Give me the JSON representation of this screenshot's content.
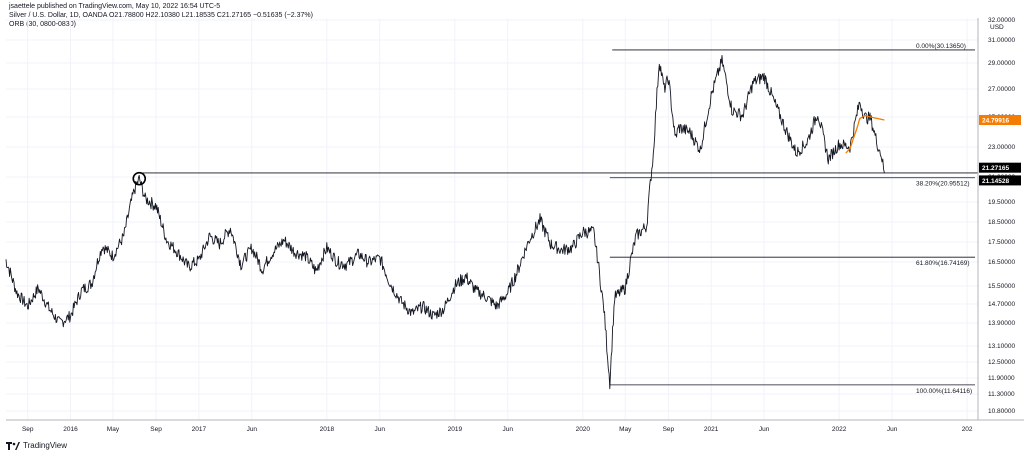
{
  "header": {
    "published": "jsaettele published on TradingView.com, May 10, 2022 16:54 UTC-5",
    "symbol_line": "Silver / U.S. Dollar, 1D, OANDA  O21.78800  H22.10380  L21.18535  C21.27165  −0.51635 (−2.37%)",
    "indicator_line": "ORB (30, 0800-0830)"
  },
  "footer": {
    "brand": "TradingView"
  },
  "colors": {
    "price_line": "#131722",
    "orb_line": "#f57c00",
    "price_tag_bg": "#000000",
    "orb_tag_bg": "#f57c00",
    "grid": "#f0f3fa",
    "fib_line": "#131722"
  },
  "chart_data": {
    "type": "line",
    "title": "Silver / U.S. Dollar, 1D, OANDA",
    "ylabel": "USD",
    "ylim": [
      10.25,
      32.0
    ],
    "y_ticks": [
      "32.00000",
      "31.00000",
      "29.00000",
      "27.00000",
      "25.00000",
      "23.00000",
      "21.00000",
      "19.50000",
      "18.50000",
      "17.50000",
      "16.50000",
      "15.50000",
      "14.70000",
      "13.90000",
      "13.10000",
      "12.50000",
      "11.90000",
      "11.30000",
      "10.80000"
    ],
    "x_ticks": [
      "Sep",
      "2016",
      "May",
      "Sep",
      "2017",
      "Jun",
      "2018",
      "Jun",
      "2019",
      "Jun",
      "2020",
      "May",
      "Sep",
      "2021",
      "Jun",
      "2022",
      "Jun",
      "202"
    ],
    "current_price": {
      "label": "21.27165",
      "value": 21.27165
    },
    "level_tag": {
      "label": "21.14528",
      "value": 21.14528
    },
    "orb_tag": {
      "label": "24.79916",
      "value": 24.79916
    },
    "horizontal_level": 21.27165,
    "fibonacci": [
      {
        "label": "0.00%(30.13650)",
        "value": 30.1365
      },
      {
        "label": "38.20%(20.95512)",
        "value": 20.95512
      },
      {
        "label": "61.80%(16.74169)",
        "value": 16.74169
      },
      {
        "label": "100.00%(11.64116)",
        "value": 11.64116
      }
    ],
    "series": [
      {
        "values": [
          [
            "2015-07-01",
            16.6
          ],
          [
            "2015-08-01",
            15.2
          ],
          [
            "2015-09-01",
            14.6
          ],
          [
            "2015-10-01",
            15.4
          ],
          [
            "2015-11-01",
            14.5
          ],
          [
            "2015-12-01",
            13.9
          ],
          [
            "2016-01-01",
            14.2
          ],
          [
            "2016-02-01",
            15.3
          ],
          [
            "2016-03-01",
            15.6
          ],
          [
            "2016-04-01",
            17.3
          ],
          [
            "2016-05-01",
            16.8
          ],
          [
            "2016-06-01",
            17.8
          ],
          [
            "2016-07-01",
            20.2
          ],
          [
            "2016-07-15",
            20.9
          ],
          [
            "2016-08-01",
            19.7
          ],
          [
            "2016-09-01",
            19.3
          ],
          [
            "2016-10-01",
            17.6
          ],
          [
            "2016-11-01",
            17.0
          ],
          [
            "2016-12-01",
            16.3
          ],
          [
            "2017-01-01",
            16.6
          ],
          [
            "2017-02-01",
            17.8
          ],
          [
            "2017-03-01",
            17.4
          ],
          [
            "2017-04-01",
            18.2
          ],
          [
            "2017-05-01",
            16.4
          ],
          [
            "2017-06-01",
            17.2
          ],
          [
            "2017-07-01",
            16.2
          ],
          [
            "2017-08-01",
            17.0
          ],
          [
            "2017-09-01",
            17.6
          ],
          [
            "2017-10-01",
            17.0
          ],
          [
            "2017-11-01",
            16.8
          ],
          [
            "2017-12-01",
            16.1
          ],
          [
            "2018-01-01",
            17.2
          ],
          [
            "2018-02-01",
            16.5
          ],
          [
            "2018-03-01",
            16.4
          ],
          [
            "2018-04-01",
            16.9
          ],
          [
            "2018-05-01",
            16.5
          ],
          [
            "2018-06-01",
            16.7
          ],
          [
            "2018-07-01",
            15.6
          ],
          [
            "2018-08-01",
            14.8
          ],
          [
            "2018-09-01",
            14.3
          ],
          [
            "2018-10-01",
            14.6
          ],
          [
            "2018-11-01",
            14.2
          ],
          [
            "2018-12-01",
            14.5
          ],
          [
            "2019-01-01",
            15.5
          ],
          [
            "2019-02-01",
            15.9
          ],
          [
            "2019-03-01",
            15.3
          ],
          [
            "2019-04-01",
            15.0
          ],
          [
            "2019-05-01",
            14.6
          ],
          [
            "2019-06-01",
            15.2
          ],
          [
            "2019-07-01",
            16.2
          ],
          [
            "2019-08-01",
            17.6
          ],
          [
            "2019-09-01",
            18.6
          ],
          [
            "2019-10-01",
            17.4
          ],
          [
            "2019-11-01",
            17.1
          ],
          [
            "2019-12-01",
            17.2
          ],
          [
            "2020-01-01",
            18.0
          ],
          [
            "2020-02-01",
            18.0
          ],
          [
            "2020-03-01",
            14.5
          ],
          [
            "2020-03-18",
            11.7
          ],
          [
            "2020-04-01",
            15.0
          ],
          [
            "2020-05-01",
            15.4
          ],
          [
            "2020-06-01",
            17.8
          ],
          [
            "2020-07-01",
            18.3
          ],
          [
            "2020-07-20",
            22.5
          ],
          [
            "2020-08-06",
            29.2
          ],
          [
            "2020-08-20",
            27.0
          ],
          [
            "2020-09-01",
            27.8
          ],
          [
            "2020-09-20",
            23.6
          ],
          [
            "2020-10-01",
            24.3
          ],
          [
            "2020-11-01",
            24.0
          ],
          [
            "2020-12-01",
            22.8
          ],
          [
            "2021-01-01",
            26.5
          ],
          [
            "2021-02-01",
            29.2
          ],
          [
            "2021-02-20",
            26.7
          ],
          [
            "2021-03-01",
            25.5
          ],
          [
            "2021-04-01",
            25.1
          ],
          [
            "2021-05-01",
            27.5
          ],
          [
            "2021-06-01",
            28.0
          ],
          [
            "2021-07-01",
            26.0
          ],
          [
            "2021-08-01",
            24.2
          ],
          [
            "2021-09-01",
            22.6
          ],
          [
            "2021-10-01",
            23.3
          ],
          [
            "2021-11-01",
            25.3
          ],
          [
            "2021-12-01",
            22.2
          ],
          [
            "2022-01-01",
            23.2
          ],
          [
            "2022-02-01",
            23.0
          ],
          [
            "2022-03-01",
            26.1
          ],
          [
            "2022-03-15",
            25.0
          ],
          [
            "2022-04-01",
            24.9
          ],
          [
            "2022-04-20",
            23.2
          ],
          [
            "2022-05-01",
            22.5
          ],
          [
            "2022-05-10",
            21.27
          ]
        ]
      },
      {
        "name": "ORB (30, 0800-0830)",
        "values": [
          [
            "2022-01-20",
            22.6
          ],
          [
            "2022-02-01",
            22.9
          ],
          [
            "2022-02-20",
            24.2
          ],
          [
            "2022-03-01",
            24.9
          ],
          [
            "2022-03-15",
            25.1
          ],
          [
            "2022-04-01",
            25.0
          ],
          [
            "2022-04-20",
            24.9
          ],
          [
            "2022-05-10",
            24.8
          ]
        ]
      }
    ],
    "marker": {
      "date": "2016-07-15",
      "value": 20.9
    }
  }
}
